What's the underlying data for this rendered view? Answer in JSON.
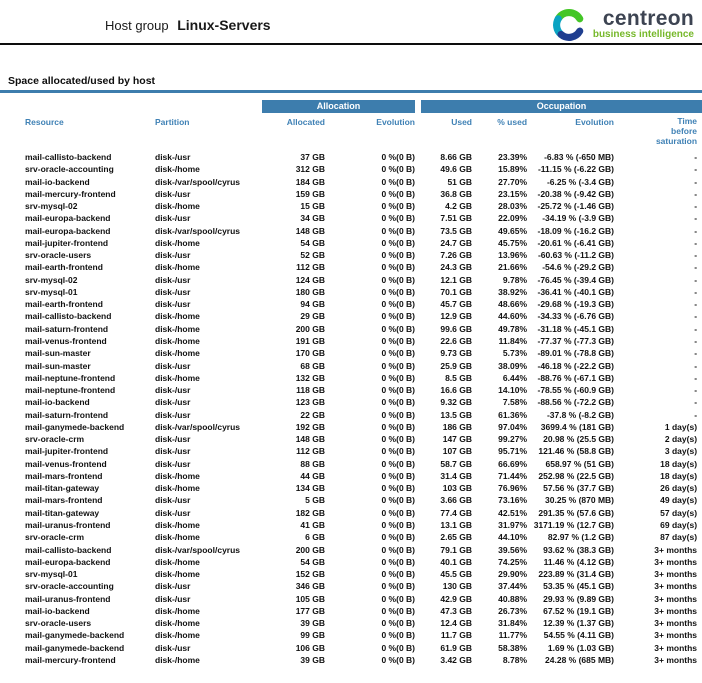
{
  "header": {
    "title_prefix": "Host group",
    "title_name": "Linux-Servers",
    "logo": {
      "brand": "centreon",
      "tagline": "business intelligence"
    }
  },
  "section": {
    "title": "Space allocated/used by host"
  },
  "colors": {
    "accent_blue": "#3d7dad",
    "header_text_blue": "#3f81b5",
    "brand_green": "#76b82a",
    "brand_dark": "#3d4452"
  },
  "table": {
    "group_headers": {
      "allocation": "Allocation",
      "occupation": "Occupation"
    },
    "columns": {
      "resource": "Resource",
      "partition": "Partition",
      "allocated": "Allocated",
      "alloc_evolution": "Evolution",
      "used": "Used",
      "pct_used": "% used",
      "occ_evolution": "Evolution",
      "time": "Time before saturation"
    },
    "row_keys": [
      "resource",
      "partition",
      "allocated",
      "alloc_evolution",
      "used",
      "pct_used",
      "occ_evolution",
      "time"
    ],
    "rows": [
      {
        "resource": "mail-callisto-backend",
        "partition": "disk-/usr",
        "allocated": "37 GB",
        "alloc_evolution": "0 %(0 B)",
        "used": "8.66 GB",
        "pct_used": "23.39%",
        "occ_evolution": "-6.83 % (-650 MB)",
        "time": "-"
      },
      {
        "resource": "srv-oracle-accounting",
        "partition": "disk-/home",
        "allocated": "312 GB",
        "alloc_evolution": "0 %(0 B)",
        "used": "49.6 GB",
        "pct_used": "15.89%",
        "occ_evolution": "-11.15 % (-6.22 GB)",
        "time": "-"
      },
      {
        "resource": "mail-io-backend",
        "partition": "disk-/var/spool/cyrus",
        "allocated": "184 GB",
        "alloc_evolution": "0 %(0 B)",
        "used": "51 GB",
        "pct_used": "27.70%",
        "occ_evolution": "-6.25 % (-3.4 GB)",
        "time": "-"
      },
      {
        "resource": "mail-mercury-frontend",
        "partition": "disk-/usr",
        "allocated": "159 GB",
        "alloc_evolution": "0 %(0 B)",
        "used": "36.8 GB",
        "pct_used": "23.15%",
        "occ_evolution": "-20.38 % (-9.42 GB)",
        "time": "-"
      },
      {
        "resource": "srv-mysql-02",
        "partition": "disk-/home",
        "allocated": "15 GB",
        "alloc_evolution": "0 %(0 B)",
        "used": "4.2 GB",
        "pct_used": "28.03%",
        "occ_evolution": "-25.72 % (-1.46 GB)",
        "time": "-"
      },
      {
        "resource": "mail-europa-backend",
        "partition": "disk-/usr",
        "allocated": "34 GB",
        "alloc_evolution": "0 %(0 B)",
        "used": "7.51 GB",
        "pct_used": "22.09%",
        "occ_evolution": "-34.19 % (-3.9 GB)",
        "time": "-"
      },
      {
        "resource": "mail-europa-backend",
        "partition": "disk-/var/spool/cyrus",
        "allocated": "148 GB",
        "alloc_evolution": "0 %(0 B)",
        "used": "73.5 GB",
        "pct_used": "49.65%",
        "occ_evolution": "-18.09 % (-16.2 GB)",
        "time": "-"
      },
      {
        "resource": "mail-jupiter-frontend",
        "partition": "disk-/home",
        "allocated": "54 GB",
        "alloc_evolution": "0 %(0 B)",
        "used": "24.7 GB",
        "pct_used": "45.75%",
        "occ_evolution": "-20.61 % (-6.41 GB)",
        "time": "-"
      },
      {
        "resource": "srv-oracle-users",
        "partition": "disk-/usr",
        "allocated": "52 GB",
        "alloc_evolution": "0 %(0 B)",
        "used": "7.26 GB",
        "pct_used": "13.96%",
        "occ_evolution": "-60.63 % (-11.2 GB)",
        "time": "-"
      },
      {
        "resource": "mail-earth-frontend",
        "partition": "disk-/home",
        "allocated": "112 GB",
        "alloc_evolution": "0 %(0 B)",
        "used": "24.3 GB",
        "pct_used": "21.66%",
        "occ_evolution": "-54.6 % (-29.2 GB)",
        "time": "-"
      },
      {
        "resource": "srv-mysql-02",
        "partition": "disk-/usr",
        "allocated": "124 GB",
        "alloc_evolution": "0 %(0 B)",
        "used": "12.1 GB",
        "pct_used": "9.78%",
        "occ_evolution": "-76.45 % (-39.4 GB)",
        "time": "-"
      },
      {
        "resource": "srv-mysql-01",
        "partition": "disk-/usr",
        "allocated": "180 GB",
        "alloc_evolution": "0 %(0 B)",
        "used": "70.1 GB",
        "pct_used": "38.92%",
        "occ_evolution": "-36.41 % (-40.1 GB)",
        "time": "-"
      },
      {
        "resource": "mail-earth-frontend",
        "partition": "disk-/usr",
        "allocated": "94 GB",
        "alloc_evolution": "0 %(0 B)",
        "used": "45.7 GB",
        "pct_used": "48.66%",
        "occ_evolution": "-29.68 % (-19.3 GB)",
        "time": "-"
      },
      {
        "resource": "mail-callisto-backend",
        "partition": "disk-/home",
        "allocated": "29 GB",
        "alloc_evolution": "0 %(0 B)",
        "used": "12.9 GB",
        "pct_used": "44.60%",
        "occ_evolution": "-34.33 % (-6.76 GB)",
        "time": "-"
      },
      {
        "resource": "mail-saturn-frontend",
        "partition": "disk-/home",
        "allocated": "200 GB",
        "alloc_evolution": "0 %(0 B)",
        "used": "99.6 GB",
        "pct_used": "49.78%",
        "occ_evolution": "-31.18 % (-45.1 GB)",
        "time": "-"
      },
      {
        "resource": "mail-venus-frontend",
        "partition": "disk-/home",
        "allocated": "191 GB",
        "alloc_evolution": "0 %(0 B)",
        "used": "22.6 GB",
        "pct_used": "11.84%",
        "occ_evolution": "-77.37 % (-77.3 GB)",
        "time": "-"
      },
      {
        "resource": "mail-sun-master",
        "partition": "disk-/home",
        "allocated": "170 GB",
        "alloc_evolution": "0 %(0 B)",
        "used": "9.73 GB",
        "pct_used": "5.73%",
        "occ_evolution": "-89.01 % (-78.8 GB)",
        "time": "-"
      },
      {
        "resource": "mail-sun-master",
        "partition": "disk-/usr",
        "allocated": "68 GB",
        "alloc_evolution": "0 %(0 B)",
        "used": "25.9 GB",
        "pct_used": "38.09%",
        "occ_evolution": "-46.18 % (-22.2 GB)",
        "time": "-"
      },
      {
        "resource": "mail-neptune-frontend",
        "partition": "disk-/home",
        "allocated": "132 GB",
        "alloc_evolution": "0 %(0 B)",
        "used": "8.5 GB",
        "pct_used": "6.44%",
        "occ_evolution": "-88.76 % (-67.1 GB)",
        "time": "-"
      },
      {
        "resource": "mail-neptune-frontend",
        "partition": "disk-/usr",
        "allocated": "118 GB",
        "alloc_evolution": "0 %(0 B)",
        "used": "16.6 GB",
        "pct_used": "14.10%",
        "occ_evolution": "-78.55 % (-60.9 GB)",
        "time": "-"
      },
      {
        "resource": "mail-io-backend",
        "partition": "disk-/usr",
        "allocated": "123 GB",
        "alloc_evolution": "0 %(0 B)",
        "used": "9.32 GB",
        "pct_used": "7.58%",
        "occ_evolution": "-88.56 % (-72.2 GB)",
        "time": "-"
      },
      {
        "resource": "mail-saturn-frontend",
        "partition": "disk-/usr",
        "allocated": "22 GB",
        "alloc_evolution": "0 %(0 B)",
        "used": "13.5 GB",
        "pct_used": "61.36%",
        "occ_evolution": "-37.8 % (-8.2 GB)",
        "time": "-"
      },
      {
        "resource": "mail-ganymede-backend",
        "partition": "disk-/var/spool/cyrus",
        "allocated": "192 GB",
        "alloc_evolution": "0 %(0 B)",
        "used": "186 GB",
        "pct_used": "97.04%",
        "occ_evolution": "3699.4 % (181 GB)",
        "time": "1 day(s)"
      },
      {
        "resource": "srv-oracle-crm",
        "partition": "disk-/usr",
        "allocated": "148 GB",
        "alloc_evolution": "0 %(0 B)",
        "used": "147 GB",
        "pct_used": "99.27%",
        "occ_evolution": "20.98 % (25.5 GB)",
        "time": "2 day(s)"
      },
      {
        "resource": "mail-jupiter-frontend",
        "partition": "disk-/usr",
        "allocated": "112 GB",
        "alloc_evolution": "0 %(0 B)",
        "used": "107 GB",
        "pct_used": "95.71%",
        "occ_evolution": "121.46 % (58.8 GB)",
        "time": "3 day(s)"
      },
      {
        "resource": "mail-venus-frontend",
        "partition": "disk-/usr",
        "allocated": "88 GB",
        "alloc_evolution": "0 %(0 B)",
        "used": "58.7 GB",
        "pct_used": "66.69%",
        "occ_evolution": "658.97 % (51 GB)",
        "time": "18 day(s)"
      },
      {
        "resource": "mail-mars-frontend",
        "partition": "disk-/home",
        "allocated": "44 GB",
        "alloc_evolution": "0 %(0 B)",
        "used": "31.4 GB",
        "pct_used": "71.44%",
        "occ_evolution": "252.98 % (22.5 GB)",
        "time": "18 day(s)"
      },
      {
        "resource": "mail-titan-gateway",
        "partition": "disk-/home",
        "allocated": "134 GB",
        "alloc_evolution": "0 %(0 B)",
        "used": "103 GB",
        "pct_used": "76.96%",
        "occ_evolution": "57.56 % (37.7 GB)",
        "time": "26 day(s)"
      },
      {
        "resource": "mail-mars-frontend",
        "partition": "disk-/usr",
        "allocated": "5 GB",
        "alloc_evolution": "0 %(0 B)",
        "used": "3.66 GB",
        "pct_used": "73.16%",
        "occ_evolution": "30.25 % (870 MB)",
        "time": "49 day(s)"
      },
      {
        "resource": "mail-titan-gateway",
        "partition": "disk-/usr",
        "allocated": "182 GB",
        "alloc_evolution": "0 %(0 B)",
        "used": "77.4 GB",
        "pct_used": "42.51%",
        "occ_evolution": "291.35 % (57.6 GB)",
        "time": "57 day(s)"
      },
      {
        "resource": "mail-uranus-frontend",
        "partition": "disk-/home",
        "allocated": "41 GB",
        "alloc_evolution": "0 %(0 B)",
        "used": "13.1 GB",
        "pct_used": "31.97%",
        "occ_evolution": "3171.19 % (12.7 GB)",
        "time": "69 day(s)"
      },
      {
        "resource": "srv-oracle-crm",
        "partition": "disk-/home",
        "allocated": "6 GB",
        "alloc_evolution": "0 %(0 B)",
        "used": "2.65 GB",
        "pct_used": "44.10%",
        "occ_evolution": "82.97 % (1.2 GB)",
        "time": "87 day(s)"
      },
      {
        "resource": "mail-callisto-backend",
        "partition": "disk-/var/spool/cyrus",
        "allocated": "200 GB",
        "alloc_evolution": "0 %(0 B)",
        "used": "79.1 GB",
        "pct_used": "39.56%",
        "occ_evolution": "93.62 % (38.3 GB)",
        "time": "3+ months"
      },
      {
        "resource": "mail-europa-backend",
        "partition": "disk-/home",
        "allocated": "54 GB",
        "alloc_evolution": "0 %(0 B)",
        "used": "40.1 GB",
        "pct_used": "74.25%",
        "occ_evolution": "11.46 % (4.12 GB)",
        "time": "3+ months"
      },
      {
        "resource": "srv-mysql-01",
        "partition": "disk-/home",
        "allocated": "152 GB",
        "alloc_evolution": "0 %(0 B)",
        "used": "45.5 GB",
        "pct_used": "29.90%",
        "occ_evolution": "223.89 % (31.4 GB)",
        "time": "3+ months"
      },
      {
        "resource": "srv-oracle-accounting",
        "partition": "disk-/usr",
        "allocated": "346 GB",
        "alloc_evolution": "0 %(0 B)",
        "used": "130 GB",
        "pct_used": "37.44%",
        "occ_evolution": "53.35 % (45.1 GB)",
        "time": "3+ months"
      },
      {
        "resource": "mail-uranus-frontend",
        "partition": "disk-/usr",
        "allocated": "105 GB",
        "alloc_evolution": "0 %(0 B)",
        "used": "42.9 GB",
        "pct_used": "40.88%",
        "occ_evolution": "29.93 % (9.89 GB)",
        "time": "3+ months"
      },
      {
        "resource": "mail-io-backend",
        "partition": "disk-/home",
        "allocated": "177 GB",
        "alloc_evolution": "0 %(0 B)",
        "used": "47.3 GB",
        "pct_used": "26.73%",
        "occ_evolution": "67.52 % (19.1 GB)",
        "time": "3+ months"
      },
      {
        "resource": "srv-oracle-users",
        "partition": "disk-/home",
        "allocated": "39 GB",
        "alloc_evolution": "0 %(0 B)",
        "used": "12.4 GB",
        "pct_used": "31.84%",
        "occ_evolution": "12.39 % (1.37 GB)",
        "time": "3+ months"
      },
      {
        "resource": "mail-ganymede-backend",
        "partition": "disk-/home",
        "allocated": "99 GB",
        "alloc_evolution": "0 %(0 B)",
        "used": "11.7 GB",
        "pct_used": "11.77%",
        "occ_evolution": "54.55 % (4.11 GB)",
        "time": "3+ months"
      },
      {
        "resource": "mail-ganymede-backend",
        "partition": "disk-/usr",
        "allocated": "106 GB",
        "alloc_evolution": "0 %(0 B)",
        "used": "61.9 GB",
        "pct_used": "58.38%",
        "occ_evolution": "1.69 % (1.03 GB)",
        "time": "3+ months"
      },
      {
        "resource": "mail-mercury-frontend",
        "partition": "disk-/home",
        "allocated": "39 GB",
        "alloc_evolution": "0 %(0 B)",
        "used": "3.42 GB",
        "pct_used": "8.78%",
        "occ_evolution": "24.28 % (685 MB)",
        "time": "3+ months"
      }
    ]
  }
}
